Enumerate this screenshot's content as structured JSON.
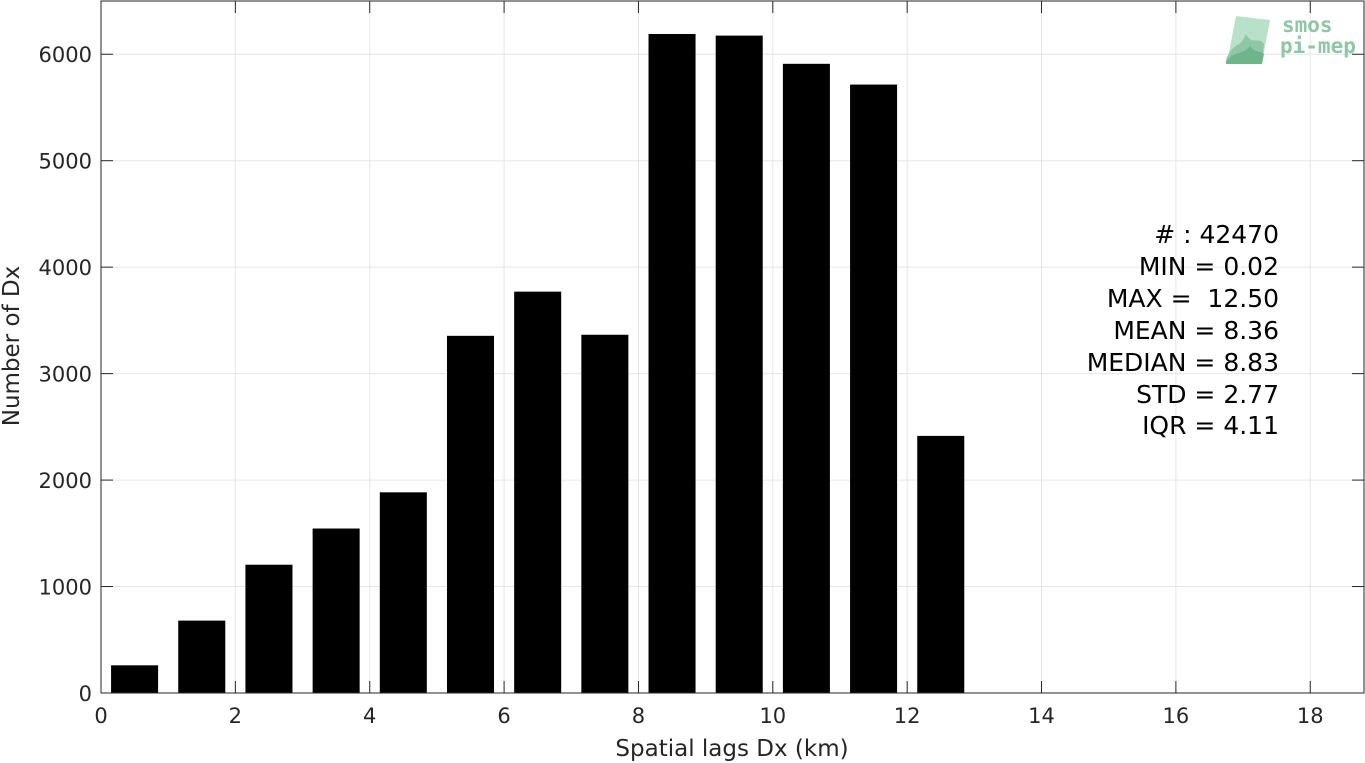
{
  "chart_data": {
    "type": "bar",
    "xlabel": "Spatial lags Dx (km)",
    "ylabel": "Number of Dx",
    "xlim": [
      0,
      18.8
    ],
    "ylim": [
      0,
      6500
    ],
    "xticks": [
      0,
      2,
      4,
      6,
      8,
      10,
      12,
      14,
      16,
      18
    ],
    "yticks": [
      0,
      1000,
      2000,
      3000,
      4000,
      5000,
      6000
    ],
    "grid": true,
    "bar_width": 0.7,
    "bar_color": "#000000",
    "bins": [
      0.5,
      1.5,
      2.5,
      3.5,
      4.5,
      5.5,
      6.5,
      7.5,
      8.5,
      9.5,
      10.5,
      11.5,
      12.5
    ],
    "values": [
      260,
      680,
      1205,
      1545,
      1885,
      3355,
      3770,
      3365,
      6190,
      6175,
      5910,
      5715,
      2415
    ]
  },
  "stats": {
    "lines": [
      "# : 42470",
      "MIN = 0.02",
      "MAX =  12.50",
      "MEAN = 8.36",
      "MEDIAN = 8.83",
      "STD = 2.77",
      "IQR = 4.11"
    ]
  },
  "logo": {
    "line1": "smos",
    "line2": "pi-mep",
    "color": "#8fc7a6"
  }
}
